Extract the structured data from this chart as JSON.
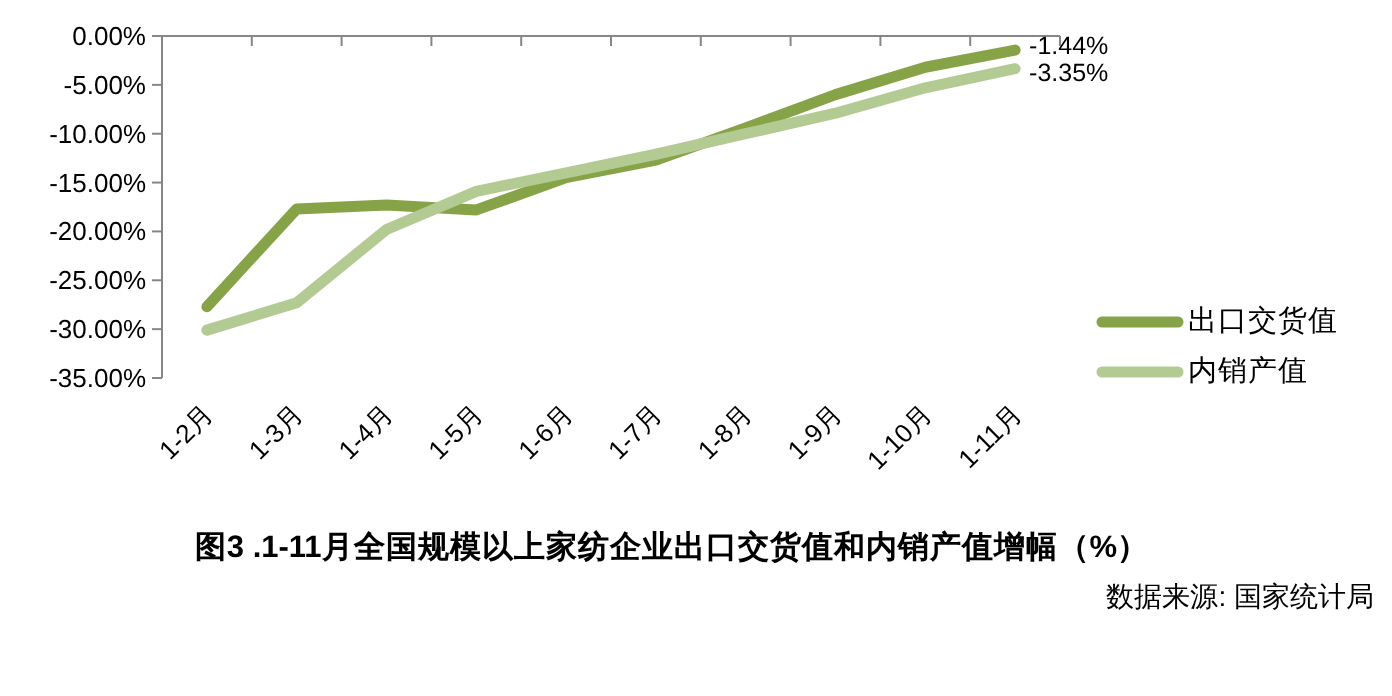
{
  "chart_data": {
    "type": "line",
    "title": "图3 .1-11月全国规模以上家纺企业出口交货值和内销产值增幅（%）",
    "annotations": [
      "数据来源: 国家统计局"
    ],
    "categories": [
      "1-2月",
      "1-3月",
      "1-4月",
      "1-5月",
      "1-6月",
      "1-7月",
      "1-8月",
      "1-9月",
      "1-10月",
      "1-11月"
    ],
    "series": [
      {
        "name": "出口交货值",
        "color": "#86a447",
        "values": [
          -27.7,
          -17.7,
          -17.3,
          -17.8,
          -14.5,
          -12.7,
          -9.4,
          -6.0,
          -3.2,
          -1.44
        ],
        "value_labels": [
          null,
          null,
          null,
          null,
          null,
          null,
          null,
          null,
          null,
          "-1.44%"
        ]
      },
      {
        "name": "内销产值",
        "color": "#b3cb93",
        "values": [
          -30.1,
          -27.3,
          -19.8,
          -15.9,
          -14.0,
          -12.1,
          -10.0,
          -7.9,
          -5.3,
          -3.35
        ],
        "value_labels": [
          null,
          null,
          null,
          null,
          null,
          null,
          null,
          null,
          null,
          "-3.35%"
        ]
      }
    ],
    "ylim": [
      -35,
      0
    ],
    "yticks": [
      {
        "value": 0,
        "label": "0.00%"
      },
      {
        "value": -5,
        "label": "-5.00%"
      },
      {
        "value": -10,
        "label": "-10.00%"
      },
      {
        "value": -15,
        "label": "-15.00%"
      },
      {
        "value": -20,
        "label": "-20.00%"
      },
      {
        "value": -25,
        "label": "-25.00%"
      },
      {
        "value": -30,
        "label": "-30.00%"
      },
      {
        "value": -35,
        "label": "-35.00%"
      }
    ],
    "grid": false,
    "legend": "right",
    "marker": "none",
    "line_style": "solid"
  }
}
